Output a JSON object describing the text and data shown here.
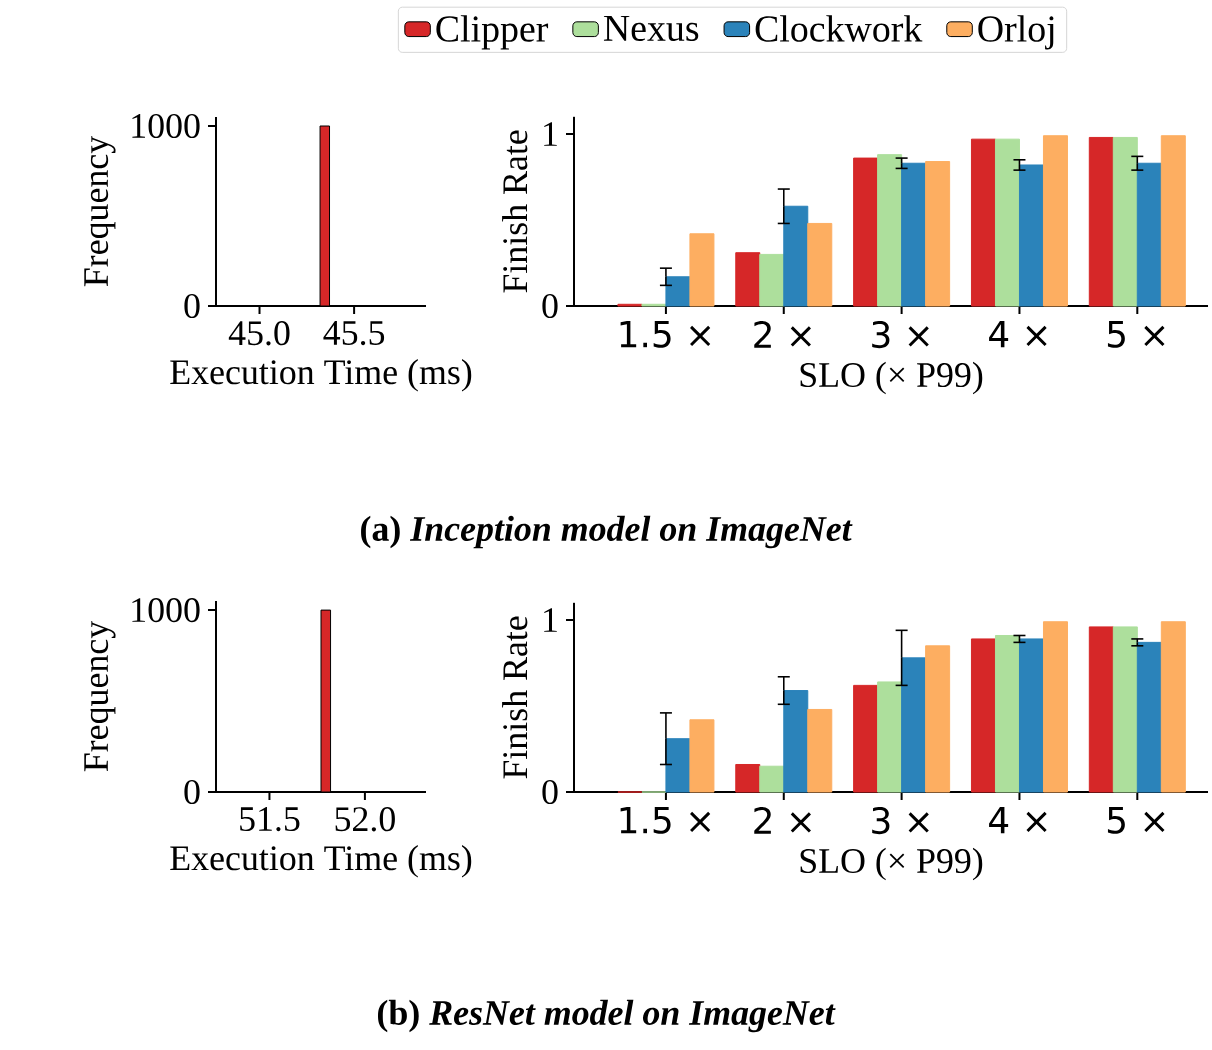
{
  "chart_data": [
    {
      "type": "histogram",
      "xlabel": "Execution Time (ms)",
      "ylabel": "Frequency",
      "bins": [
        45.32,
        45.37
      ],
      "values": [
        1000
      ],
      "color": "#d62728",
      "xlim": [
        44.77,
        45.88
      ],
      "xticks": [
        {
          "value": 45.0,
          "label": "45.0"
        },
        {
          "value": 45.5,
          "label": "45.5"
        }
      ],
      "ylim": [
        0,
        1050
      ],
      "yticks": [
        0,
        1000
      ],
      "annotations": [
        "(a) *Inception model on ImageNet*"
      ]
    },
    {
      "type": "bar",
      "xlabel": "SLO (× P99)",
      "ylabel": "Finish Rate",
      "categories": [
        "1.5 ×",
        "2 ×",
        "3 ×",
        "4 ×",
        "5 ×"
      ],
      "ylim": [
        0,
        1.1
      ],
      "yticks": [
        0,
        1
      ],
      "legend": "top",
      "series": [
        {
          "name": "Clipper",
          "color": "#d62728",
          "values": [
            0.01,
            0.31,
            0.86,
            0.97,
            0.98
          ]
        },
        {
          "name": "Nexus",
          "color": "#addf9c",
          "values": [
            0.01,
            0.3,
            0.88,
            0.97,
            0.98
          ]
        },
        {
          "name": "Clockwork",
          "color": "#2b83ba",
          "values": [
            0.17,
            0.58,
            0.83,
            0.82,
            0.83
          ],
          "errors": [
            0.05,
            0.1,
            0.03,
            0.03,
            0.04
          ]
        },
        {
          "name": "Orloj",
          "color": "#fdae61",
          "values": [
            0.42,
            0.48,
            0.84,
            0.99,
            0.99
          ]
        }
      ]
    },
    {
      "type": "histogram",
      "xlabel": "Execution Time (ms)",
      "ylabel": "Frequency",
      "bins": [
        51.77,
        51.82
      ],
      "values": [
        1000
      ],
      "color": "#d62728",
      "xlim": [
        51.22,
        52.32
      ],
      "xticks": [
        {
          "value": 51.5,
          "label": "51.5"
        },
        {
          "value": 52.0,
          "label": "52.0"
        }
      ],
      "ylim": [
        0,
        1050
      ],
      "yticks": [
        0,
        1000
      ],
      "annotations": [
        "(b) *ResNet model on ImageNet*"
      ]
    },
    {
      "type": "bar",
      "xlabel": "SLO (× P99)",
      "ylabel": "Finish Rate",
      "categories": [
        "1.5 ×",
        "2 ×",
        "3 ×",
        "4 ×",
        "5 ×"
      ],
      "ylim": [
        0,
        1.1
      ],
      "yticks": [
        0,
        1
      ],
      "series": [
        {
          "color": "#d62728",
          "values": [
            0,
            0.16,
            0.62,
            0.89,
            0.96
          ]
        },
        {
          "color": "#addf9c",
          "values": [
            0,
            0.15,
            0.64,
            0.91,
            0.96
          ]
        },
        {
          "color": "#2b83ba",
          "values": [
            0.31,
            0.59,
            0.78,
            0.89,
            0.87
          ],
          "errors": [
            0.15,
            0.08,
            0.16,
            0.02,
            0.02
          ]
        },
        {
          "color": "#fdae61",
          "values": [
            0.42,
            0.48,
            0.85,
            0.99,
            0.99
          ]
        }
      ]
    }
  ]
}
